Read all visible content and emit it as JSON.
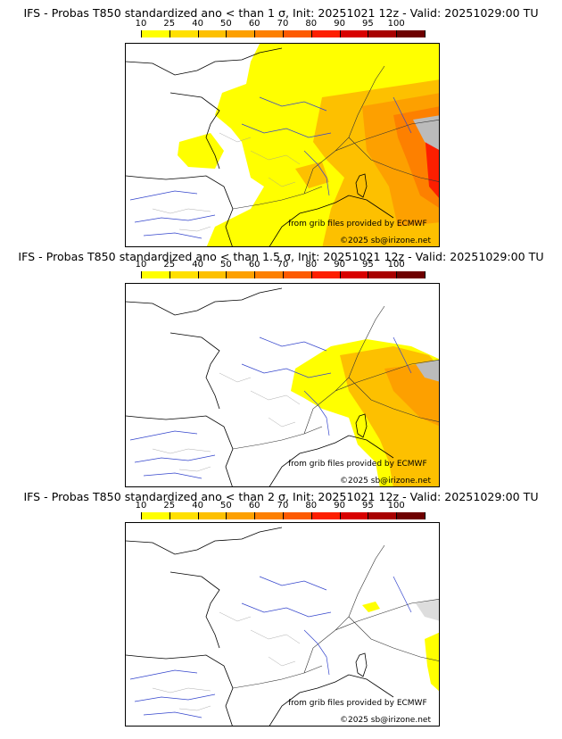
{
  "panels": [
    {
      "title": "IFS - Probas T850  standardized ano < than 1 σ, Init: 20251021 12z - Valid: 20251029:00 TU"
    },
    {
      "title": "IFS - Probas T850  standardized ano < than 1.5 σ, Init: 20251021 12z - Valid: 20251029:00 TU"
    },
    {
      "title": "IFS - Probas T850  standardized ano < than 2 σ, Init: 20251021 12z - Valid: 20251029:00 TU"
    }
  ],
  "legend": {
    "labels": [
      "10",
      "25",
      "40",
      "50",
      "60",
      "70",
      "80",
      "90",
      "95",
      "100"
    ],
    "colors": [
      "#ffff00",
      "#ffe000",
      "#fdc000",
      "#fda000",
      "#fd8000",
      "#fd5a00",
      "#fd1f00",
      "#d80000",
      "#a80000",
      "#6e0000"
    ]
  },
  "credits": {
    "source": "from grib files provided by ECMWF",
    "copyright": "©2025 sb@irizone.net"
  }
}
